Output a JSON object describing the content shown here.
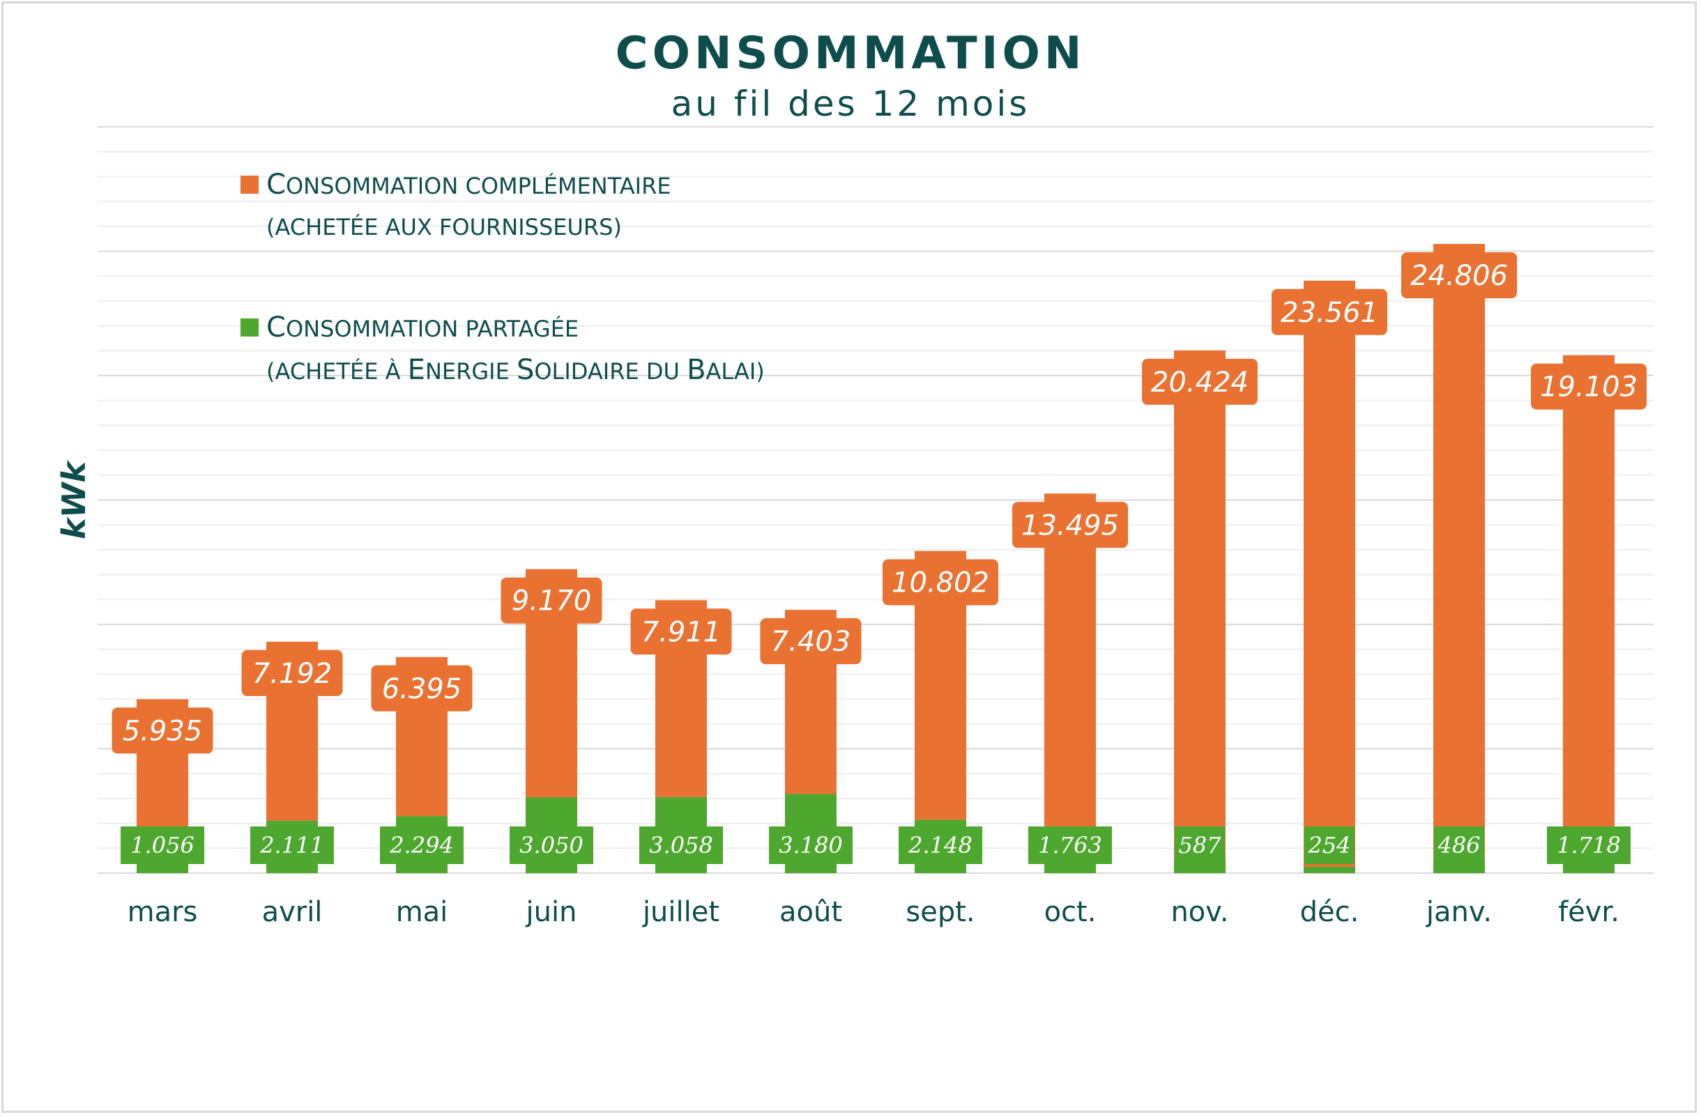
{
  "chart_data": {
    "type": "bar",
    "stacked": true,
    "title": "CONSOMMATION",
    "subtitle": "au fil des 12 mois",
    "ylabel": "kWk",
    "xlabel": "",
    "ylim": [
      0,
      30000
    ],
    "grid": true,
    "legend_position": "top-left",
    "categories": [
      "mars",
      "avril",
      "mai",
      "juin",
      "juillet",
      "août",
      "sept.",
      "oct.",
      "nov.",
      "déc.",
      "janv.",
      "févr."
    ],
    "series": [
      {
        "name": "Consommation partagée (achetée à Energie Solidaire du Balai)",
        "legend_line1": "Consommation partagée",
        "legend_line2": "(achetée à Energie Solidaire du Balai)",
        "color": "#4ea72e",
        "values": [
          1056,
          2111,
          2294,
          3050,
          3058,
          3180,
          2148,
          1763,
          587,
          254,
          486,
          1718
        ],
        "labels": [
          "1.056",
          "2.111",
          "2.294",
          "3.050",
          "3.058",
          "3.180",
          "2.148",
          "1.763",
          "587",
          "254",
          "486",
          "1.718"
        ]
      },
      {
        "name": "Consommation complémentaire (achetée aux fournisseurs)",
        "legend_line1": "Consommation complémentaire",
        "legend_line2": "(achetée aux fournisseurs)",
        "color": "#e97132",
        "values": [
          5935,
          7192,
          6395,
          9170,
          7911,
          7403,
          10802,
          13495,
          20424,
          23561,
          24806,
          19103
        ],
        "labels": [
          "5.935",
          "7.192",
          "6.395",
          "9.170",
          "7.911",
          "7.403",
          "10.802",
          "13.495",
          "20.424",
          "23.561",
          "24.806",
          "19.103"
        ]
      }
    ]
  }
}
